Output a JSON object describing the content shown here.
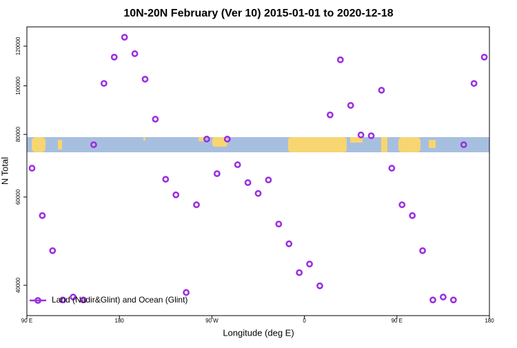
{
  "chart_data": {
    "type": "scatter",
    "title": "10N-20N February (Ver 10)   2015-01-01 to 2020-12-18",
    "x_label": "Longitude (deg E)",
    "y_label": "N Total",
    "log_y": true,
    "legend": "lower left",
    "xlim": [
      90,
      540
    ],
    "xticks": [
      {
        "value": 90,
        "label": "90 E"
      },
      {
        "value": 180,
        "label": "180"
      },
      {
        "value": 270,
        "label": "90 W"
      },
      {
        "value": 360,
        "label": "0"
      },
      {
        "value": 450,
        "label": "90 E"
      },
      {
        "value": 540,
        "label": "180"
      }
    ],
    "ylim": [
      34800,
      131100
    ],
    "yticks": [
      40000,
      60000,
      80000,
      100000,
      120000
    ],
    "series": [
      {
        "name": "Land (Nadir&Glint) and Ocean (Glint)",
        "color": "#9b30e0",
        "x": [
          95,
          105,
          115,
          125,
          135,
          145,
          155,
          165,
          175,
          185,
          195,
          205,
          215,
          225,
          235,
          245,
          255,
          265,
          275,
          285,
          295,
          305,
          315,
          325,
          335,
          345,
          355,
          365,
          375,
          385,
          395,
          405,
          415,
          425,
          435,
          445,
          455,
          465,
          475,
          485,
          495,
          505,
          515,
          525,
          535
        ],
        "values": [
          68500,
          55100,
          46900,
          37400,
          37900,
          37400,
          76300,
          101100,
          114100,
          125000,
          115900,
          103100,
          85800,
          65100,
          60600,
          38700,
          57900,
          78300,
          66800,
          78300,
          69600,
          64100,
          61000,
          64900,
          53000,
          48400,
          42400,
          44100,
          39900,
          87500,
          112700,
          91400,
          79800,
          79500,
          98000,
          68500,
          57900,
          55100,
          46900,
          37400,
          37900,
          37400,
          76300,
          101100,
          114100
        ]
      }
    ]
  }
}
